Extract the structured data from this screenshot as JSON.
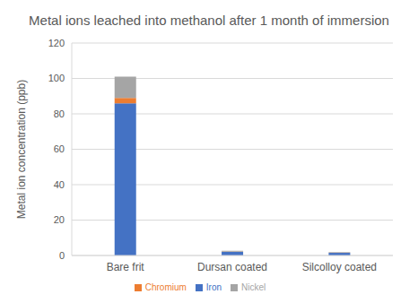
{
  "chart_data": {
    "type": "bar",
    "title": "Metal ions leached into methanol after 1 month of immersion",
    "y_label": "Metal ion concentration (ppb)",
    "categories": [
      "Bare frit",
      "Dursan coated",
      "Silcolloy coated"
    ],
    "series": [
      {
        "name": "Iron",
        "color": "#4472c4",
        "values": [
          86,
          2,
          1.5
        ]
      },
      {
        "name": "Chromium",
        "color": "#ed7d31",
        "values": [
          3,
          0.2,
          0.1
        ]
      },
      {
        "name": "Nickel",
        "color": "#a5a5a5",
        "values": [
          12,
          0.5,
          0.3
        ]
      }
    ],
    "stacked": true,
    "ylim": [
      0,
      120
    ],
    "yticks": [
      0,
      20,
      40,
      60,
      80,
      100,
      120
    ],
    "grid": true,
    "legend": "bottom"
  }
}
